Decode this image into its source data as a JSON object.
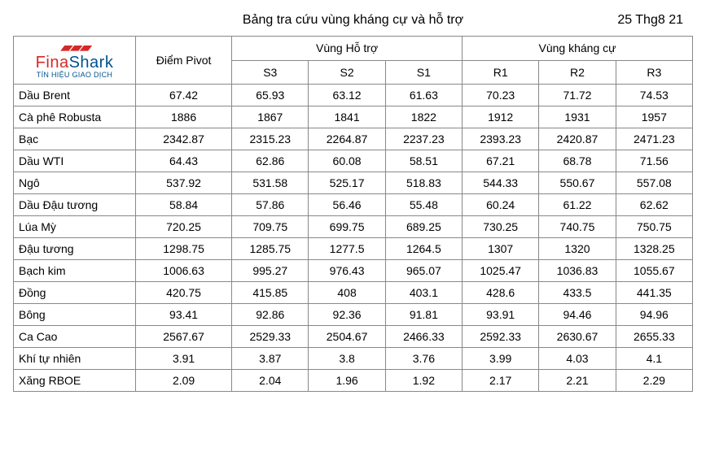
{
  "header": {
    "title": "Bảng tra cứu vùng kháng cự và hỗ trợ",
    "date": "25 Thg8 21"
  },
  "logo": {
    "name_a": "Fina",
    "name_b": "Shark",
    "tagline": "TÍN HIỆU GIAO DỊCH"
  },
  "columns": {
    "pivot": "Điểm Pivot",
    "support_group": "Vùng Hỗ trợ",
    "resist_group": "Vùng kháng cự",
    "s3": "S3",
    "s2": "S2",
    "s1": "S1",
    "r1": "R1",
    "r2": "R2",
    "r3": "R3"
  },
  "rows": [
    {
      "name": "Dầu Brent",
      "pivot": "67.42",
      "s3": "65.93",
      "s2": "63.12",
      "s1": "61.63",
      "r1": "70.23",
      "r2": "71.72",
      "r3": "74.53"
    },
    {
      "name": "Cà phê Robusta",
      "pivot": "1886",
      "s3": "1867",
      "s2": "1841",
      "s1": "1822",
      "r1": "1912",
      "r2": "1931",
      "r3": "1957"
    },
    {
      "name": "Bạc",
      "pivot": "2342.87",
      "s3": "2315.23",
      "s2": "2264.87",
      "s1": "2237.23",
      "r1": "2393.23",
      "r2": "2420.87",
      "r3": "2471.23"
    },
    {
      "name": "Dầu WTI",
      "pivot": "64.43",
      "s3": "62.86",
      "s2": "60.08",
      "s1": "58.51",
      "r1": "67.21",
      "r2": "68.78",
      "r3": "71.56"
    },
    {
      "name": "Ngô",
      "pivot": "537.92",
      "s3": "531.58",
      "s2": "525.17",
      "s1": "518.83",
      "r1": "544.33",
      "r2": "550.67",
      "r3": "557.08"
    },
    {
      "name": "Dầu Đậu tương",
      "pivot": "58.84",
      "s3": "57.86",
      "s2": "56.46",
      "s1": "55.48",
      "r1": "60.24",
      "r2": "61.22",
      "r3": "62.62"
    },
    {
      "name": "Lúa Mỳ",
      "pivot": "720.25",
      "s3": "709.75",
      "s2": "699.75",
      "s1": "689.25",
      "r1": "730.25",
      "r2": "740.75",
      "r3": "750.75"
    },
    {
      "name": "Đậu tương",
      "pivot": "1298.75",
      "s3": "1285.75",
      "s2": "1277.5",
      "s1": "1264.5",
      "r1": "1307",
      "r2": "1320",
      "r3": "1328.25"
    },
    {
      "name": "Bạch kim",
      "pivot": "1006.63",
      "s3": "995.27",
      "s2": "976.43",
      "s1": "965.07",
      "r1": "1025.47",
      "r2": "1036.83",
      "r3": "1055.67"
    },
    {
      "name": "Đồng",
      "pivot": "420.75",
      "s3": "415.85",
      "s2": "408",
      "s1": "403.1",
      "r1": "428.6",
      "r2": "433.5",
      "r3": "441.35"
    },
    {
      "name": "Bông",
      "pivot": "93.41",
      "s3": "92.86",
      "s2": "92.36",
      "s1": "91.81",
      "r1": "93.91",
      "r2": "94.46",
      "r3": "94.96"
    },
    {
      "name": "Ca Cao",
      "pivot": "2567.67",
      "s3": "2529.33",
      "s2": "2504.67",
      "s1": "2466.33",
      "r1": "2592.33",
      "r2": "2630.67",
      "r3": "2655.33"
    },
    {
      "name": "Khí tự nhiên",
      "pivot": "3.91",
      "s3": "3.87",
      "s2": "3.8",
      "s1": "3.76",
      "r1": "3.99",
      "r2": "4.03",
      "r3": "4.1"
    },
    {
      "name": "Xăng RBOE",
      "pivot": "2.09",
      "s3": "2.04",
      "s2": "1.96",
      "s1": "1.92",
      "r1": "2.17",
      "r2": "2.21",
      "r3": "2.29"
    }
  ]
}
